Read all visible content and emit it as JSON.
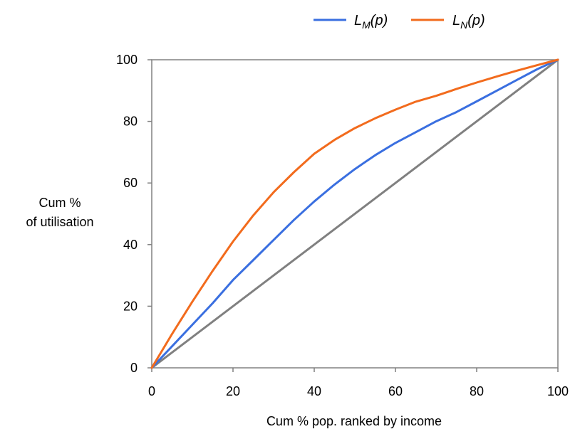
{
  "chart_data": {
    "type": "line",
    "xlabel": "Cum % pop. ranked by income",
    "ylabel_lines": [
      "Cum %",
      "of utilisation"
    ],
    "xlim": [
      0,
      100
    ],
    "ylim": [
      0,
      100
    ],
    "xticks": [
      "0",
      "20",
      "40",
      "60",
      "80",
      "100"
    ],
    "yticks": [
      "0",
      "20",
      "40",
      "60",
      "80",
      "100"
    ],
    "grid": false,
    "legend_position": "top",
    "legend": [
      {
        "main": "L",
        "sub": "M",
        "tail": "(p)",
        "color": "#3a6fe0"
      },
      {
        "main": "L",
        "sub": "N",
        "tail": "(p)",
        "color": "#f26b1d"
      }
    ],
    "series": [
      {
        "color": "#3a6fe0",
        "x": [
          0,
          5,
          10,
          15,
          20,
          25,
          30,
          35,
          40,
          45,
          50,
          55,
          60,
          65,
          70,
          75,
          80,
          85,
          90,
          95,
          100
        ],
        "y": [
          0,
          7,
          14,
          21,
          28.5,
          35,
          41.5,
          48,
          54,
          59.5,
          64.5,
          69,
          73,
          76.5,
          80,
          83,
          86.5,
          90,
          93.5,
          97,
          100
        ]
      },
      {
        "color": "#f26b1d",
        "x": [
          0,
          5,
          10,
          15,
          20,
          25,
          30,
          35,
          40,
          45,
          50,
          55,
          60,
          65,
          70,
          75,
          80,
          85,
          90,
          95,
          100
        ],
        "y": [
          0,
          11,
          21.5,
          31.5,
          41,
          49.5,
          57,
          63.5,
          69.5,
          74,
          77.8,
          81,
          83.8,
          86.4,
          88.3,
          90.5,
          92.6,
          94.6,
          96.5,
          98.3,
          100
        ]
      },
      {
        "color": "#808080",
        "x": [
          0,
          100
        ],
        "y": [
          0,
          100
        ]
      }
    ],
    "frame_color": "#808080"
  }
}
